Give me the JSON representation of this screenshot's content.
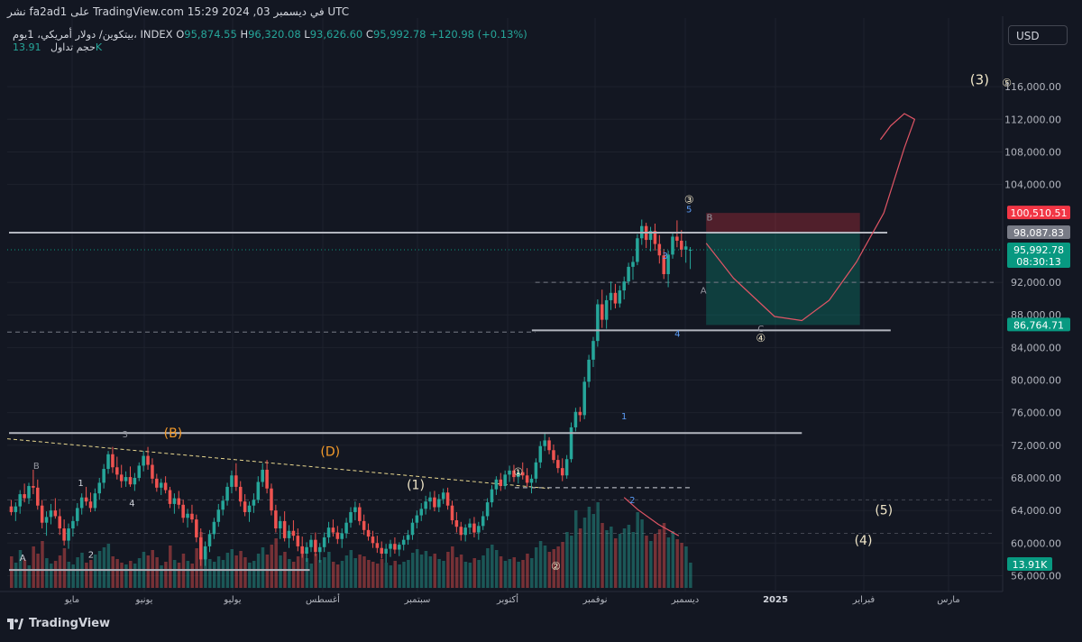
{
  "header": {
    "publish_line": "نشر fa2ad1 على TradingView.com في ديسمبر 03, 2024 15:29 UTC"
  },
  "symbol": {
    "name": "بيتكوين/ دولار أمريكي، 1يوم، INDEX",
    "open_label": "O",
    "open": "95,874.55",
    "high_label": "H",
    "high": "96,320.08",
    "low_label": "L",
    "low": "93,626.60",
    "close_label": "C",
    "close": "95,992.78",
    "change": "+120.98 (+0.13%)"
  },
  "volume": {
    "label": "حجم تداول",
    "value": "13.91K"
  },
  "currency_button": "USD",
  "brand": "TradingView",
  "chart_data": {
    "type": "candlestick",
    "title": "",
    "ylim": [
      54500,
      120000
    ],
    "y_ticks": [
      "56,000.00",
      "60,000.00",
      "64,000.00",
      "68,000.00",
      "72,000.00",
      "76,000.00",
      "80,000.00",
      "84,000.00",
      "88,000.00",
      "92,000.00",
      "104,000.00",
      "108,000.00",
      "112,000.00",
      "116,000.00"
    ],
    "x_ticks": [
      "مايو",
      "يونيو",
      "يوليو",
      "أغسطس",
      "سبتمبر",
      "أكتوبر",
      "نوفمبر",
      "ديسمبر",
      "2025",
      "فبراير",
      "مارس"
    ],
    "price_labels": [
      {
        "value": "100,510.51",
        "price": 100510.51,
        "color": "#f23645"
      },
      {
        "value": "98,087.83",
        "price": 98087.83,
        "color": "#787b86"
      },
      {
        "value": "95,992.78",
        "price": 95992.78,
        "color": "#089981",
        "sub": "08:30:13"
      },
      {
        "value": "86,764.71",
        "price": 86764.71,
        "color": "#089981"
      }
    ],
    "volume_badge": "13.91K",
    "wave_labels": [
      {
        "text": "(3)",
        "price": 116300,
        "xi": 1.42,
        "color": "#f0e6c8",
        "size": 15
      },
      {
        "text": "⑤",
        "price": 116000,
        "xi": 1.46,
        "color": "#f0e6c8",
        "size": 12
      },
      {
        "text": "③",
        "price": 101700,
        "xi": 0.995,
        "color": "#f0e6c8",
        "size": 12
      },
      {
        "text": "5",
        "price": 100600,
        "xi": 0.995,
        "color": "#5b9cf6",
        "size": 10
      },
      {
        "text": "B",
        "price": 99600,
        "xi": 1.025,
        "color": "#9598a1",
        "size": 10
      },
      {
        "text": "3",
        "price": 94900,
        "xi": 0.96,
        "color": "#5b9cf6",
        "size": 10
      },
      {
        "text": "A",
        "price": 90600,
        "xi": 1.016,
        "color": "#9598a1",
        "size": 10
      },
      {
        "text": "4",
        "price": 85300,
        "xi": 0.978,
        "color": "#5b9cf6",
        "size": 10
      },
      {
        "text": "C",
        "price": 85900,
        "xi": 1.1,
        "color": "#9598a1",
        "size": 10
      },
      {
        "text": "④",
        "price": 84700,
        "xi": 1.1,
        "color": "#f0e6c8",
        "size": 12
      },
      {
        "text": "1",
        "price": 75200,
        "xi": 0.9,
        "color": "#5b9cf6",
        "size": 10
      },
      {
        "text": "(B)",
        "price": 73000,
        "xi": 0.24,
        "color": "#f59b2a",
        "size": 14
      },
      {
        "text": "3",
        "price": 73000,
        "xi": 0.17,
        "color": "#9598a1",
        "size": 10
      },
      {
        "text": "(D)",
        "price": 70700,
        "xi": 0.47,
        "color": "#f59b2a",
        "size": 14
      },
      {
        "text": "B",
        "price": 69100,
        "xi": 0.04,
        "color": "#9598a1",
        "size": 10
      },
      {
        "text": "①",
        "price": 68300,
        "xi": 0.745,
        "color": "#f0e6c8",
        "size": 12
      },
      {
        "text": "1",
        "price": 67000,
        "xi": 0.105,
        "color": "#d1d4dc",
        "size": 10
      },
      {
        "text": "(1)",
        "price": 66600,
        "xi": 0.595,
        "color": "#f0e6c8",
        "size": 14
      },
      {
        "text": "2",
        "price": 64900,
        "xi": 0.912,
        "color": "#5b9cf6",
        "size": 10
      },
      {
        "text": "4",
        "price": 64500,
        "xi": 0.18,
        "color": "#d1d4dc",
        "size": 10
      },
      {
        "text": "(5)",
        "price": 63500,
        "xi": 1.28,
        "color": "#f0e6c8",
        "size": 14
      },
      {
        "text": "(4)",
        "price": 59800,
        "xi": 1.25,
        "color": "#f0e6c8",
        "size": 14
      },
      {
        "text": "2",
        "price": 58200,
        "xi": 0.12,
        "color": "#d1d4dc",
        "size": 10
      },
      {
        "text": "A",
        "price": 57800,
        "xi": 0.02,
        "color": "#d1d4dc",
        "size": 10
      },
      {
        "text": "②",
        "price": 56700,
        "xi": 0.8,
        "color": "#f0e6c8",
        "size": 12
      }
    ],
    "horizontal_levels": [
      {
        "price": 98087.83,
        "x0": 0.0,
        "x1": 1.285,
        "color": "#b2b5be"
      },
      {
        "price": 86100,
        "x0": 0.765,
        "x1": 1.29,
        "color": "#b2b5be"
      },
      {
        "price": 73500,
        "x0": 0.0,
        "x1": 1.16,
        "color": "#b2b5be"
      },
      {
        "price": 56700,
        "x0": 0.0,
        "x1": 0.44,
        "color": "#b2b5be"
      }
    ],
    "position": {
      "entry": 98087.83,
      "stop": 100510.51,
      "target": 86764.71,
      "x0": 1.02,
      "x1": 1.245
    },
    "candles": [
      [
        64500,
        65300,
        63400,
        63800
      ],
      [
        63800,
        65000,
        62700,
        64500
      ],
      [
        64500,
        66500,
        63600,
        66000
      ],
      [
        66000,
        67300,
        65000,
        65500
      ],
      [
        65500,
        67400,
        64800,
        67000
      ],
      [
        67000,
        69000,
        66000,
        66800
      ],
      [
        66800,
        67800,
        64100,
        64600
      ],
      [
        64600,
        65300,
        61800,
        62500
      ],
      [
        62500,
        63900,
        60900,
        63200
      ],
      [
        63200,
        64800,
        62300,
        64000
      ],
      [
        64000,
        65500,
        63000,
        63300
      ],
      [
        63300,
        64200,
        61000,
        61800
      ],
      [
        61800,
        62900,
        59700,
        60300
      ],
      [
        60300,
        62400,
        59300,
        61800
      ],
      [
        61800,
        63300,
        60800,
        62700
      ],
      [
        62700,
        64900,
        62100,
        64300
      ],
      [
        64300,
        66100,
        63500,
        65600
      ],
      [
        65600,
        66900,
        64600,
        65100
      ],
      [
        65100,
        66200,
        63800,
        64300
      ],
      [
        64300,
        66700,
        63900,
        66100
      ],
      [
        66100,
        68000,
        65300,
        67400
      ],
      [
        67400,
        69700,
        66700,
        69100
      ],
      [
        69100,
        71300,
        68500,
        70900
      ],
      [
        70900,
        71800,
        68600,
        69300
      ],
      [
        69300,
        70600,
        67800,
        68400
      ],
      [
        68400,
        69600,
        66800,
        67600
      ],
      [
        67600,
        68800,
        66900,
        68100
      ],
      [
        68100,
        69400,
        66900,
        67200
      ],
      [
        67200,
        68600,
        66400,
        68000
      ],
      [
        68000,
        69900,
        67600,
        69500
      ],
      [
        69500,
        71300,
        68800,
        70700
      ],
      [
        70700,
        71800,
        69000,
        69600
      ],
      [
        69600,
        70400,
        67300,
        67900
      ],
      [
        67900,
        68500,
        66300,
        66800
      ],
      [
        66800,
        67900,
        65900,
        67400
      ],
      [
        67400,
        68200,
        66100,
        66500
      ],
      [
        66500,
        66900,
        64300,
        64800
      ],
      [
        64800,
        66100,
        63600,
        65500
      ],
      [
        65500,
        66400,
        64200,
        64700
      ],
      [
        64700,
        65300,
        62500,
        63100
      ],
      [
        63100,
        64200,
        61900,
        63600
      ],
      [
        63600,
        64700,
        62500,
        62900
      ],
      [
        62900,
        63500,
        60100,
        60700
      ],
      [
        60700,
        61800,
        57200,
        58000
      ],
      [
        58000,
        60200,
        57200,
        59600
      ],
      [
        59600,
        61600,
        58900,
        61100
      ],
      [
        61100,
        63100,
        60500,
        62600
      ],
      [
        62600,
        64800,
        62000,
        64100
      ],
      [
        64100,
        65800,
        63400,
        65200
      ],
      [
        65200,
        67400,
        64600,
        66900
      ],
      [
        66900,
        68900,
        66100,
        68300
      ],
      [
        68300,
        69800,
        66400,
        66900
      ],
      [
        66900,
        67600,
        64500,
        65100
      ],
      [
        65100,
        66000,
        63300,
        63800
      ],
      [
        63800,
        65100,
        62600,
        64600
      ],
      [
        64600,
        66100,
        63700,
        65300
      ],
      [
        65300,
        68200,
        64900,
        67500
      ],
      [
        67500,
        69800,
        66900,
        69000
      ],
      [
        69000,
        70200,
        66100,
        66700
      ],
      [
        66700,
        67300,
        63400,
        64000
      ],
      [
        64000,
        64700,
        61300,
        61800
      ],
      [
        61800,
        63300,
        60500,
        62700
      ],
      [
        62700,
        63900,
        60200,
        60600
      ],
      [
        60600,
        62200,
        59400,
        61500
      ],
      [
        61500,
        62800,
        60300,
        60900
      ],
      [
        60900,
        61800,
        59000,
        59600
      ],
      [
        59600,
        60800,
        58200,
        58700
      ],
      [
        58700,
        60100,
        57700,
        59500
      ],
      [
        59500,
        61000,
        58900,
        60400
      ],
      [
        60400,
        61300,
        58400,
        58900
      ],
      [
        58900,
        60000,
        57600,
        59500
      ],
      [
        59500,
        61300,
        58900,
        60700
      ],
      [
        60700,
        62600,
        60000,
        61900
      ],
      [
        61900,
        62900,
        60800,
        61300
      ],
      [
        61300,
        62100,
        59900,
        60500
      ],
      [
        60500,
        61800,
        59400,
        61200
      ],
      [
        61200,
        63100,
        60600,
        62500
      ],
      [
        62500,
        64400,
        61900,
        63800
      ],
      [
        63800,
        65100,
        62800,
        64400
      ],
      [
        64400,
        64900,
        62200,
        62700
      ],
      [
        62700,
        63500,
        61000,
        61600
      ],
      [
        61600,
        62400,
        60300,
        60800
      ],
      [
        60800,
        61500,
        59400,
        60000
      ],
      [
        60000,
        60900,
        58800,
        59400
      ],
      [
        59400,
        60200,
        58100,
        58700
      ],
      [
        58700,
        59900,
        57600,
        59300
      ],
      [
        59300,
        60400,
        58300,
        59900
      ],
      [
        59900,
        60700,
        58700,
        59200
      ],
      [
        59200,
        60100,
        58400,
        59800
      ],
      [
        59800,
        60900,
        59100,
        60400
      ],
      [
        60400,
        61600,
        59800,
        61000
      ],
      [
        61000,
        63000,
        60400,
        62500
      ],
      [
        62500,
        64000,
        61800,
        63400
      ],
      [
        63400,
        64900,
        62700,
        64200
      ],
      [
        64200,
        65800,
        63500,
        65100
      ],
      [
        65100,
        66300,
        64100,
        65600
      ],
      [
        65600,
        66400,
        63900,
        64400
      ],
      [
        64400,
        66000,
        63800,
        65400
      ],
      [
        65400,
        66700,
        64800,
        66200
      ],
      [
        66200,
        66800,
        64100,
        64600
      ],
      [
        64600,
        65200,
        62300,
        62800
      ],
      [
        62800,
        63800,
        61300,
        62000
      ],
      [
        62000,
        62600,
        60300,
        61000
      ],
      [
        61000,
        62300,
        60200,
        61900
      ],
      [
        61900,
        63000,
        61100,
        62400
      ],
      [
        62400,
        63200,
        60700,
        61300
      ],
      [
        61300,
        62600,
        60400,
        62100
      ],
      [
        62100,
        63900,
        61600,
        63300
      ],
      [
        63300,
        65500,
        62800,
        65000
      ],
      [
        65000,
        67100,
        64400,
        66600
      ],
      [
        66600,
        68200,
        65900,
        67800
      ],
      [
        67800,
        68600,
        66400,
        67000
      ],
      [
        67000,
        68900,
        66600,
        68400
      ],
      [
        68400,
        69500,
        67500,
        68900
      ],
      [
        68900,
        69600,
        67500,
        68100
      ],
      [
        68100,
        69000,
        67300,
        68700
      ],
      [
        68700,
        69900,
        67800,
        68300
      ],
      [
        68300,
        69200,
        66900,
        67400
      ],
      [
        67400,
        68400,
        66100,
        67900
      ],
      [
        67900,
        70400,
        67400,
        69900
      ],
      [
        69900,
        72500,
        69200,
        71900
      ],
      [
        71900,
        73600,
        71300,
        72600
      ],
      [
        72600,
        73000,
        70900,
        71400
      ],
      [
        71400,
        72100,
        69800,
        70200
      ],
      [
        70200,
        70800,
        68600,
        69200
      ],
      [
        69200,
        70400,
        67600,
        68300
      ],
      [
        68300,
        70800,
        67900,
        70300
      ],
      [
        70300,
        74800,
        69900,
        74200
      ],
      [
        74200,
        76600,
        73700,
        76100
      ],
      [
        76100,
        76700,
        74900,
        75700
      ],
      [
        75700,
        80400,
        75200,
        79800
      ],
      [
        79800,
        83100,
        79100,
        82500
      ],
      [
        82500,
        85300,
        81600,
        84800
      ],
      [
        84800,
        89900,
        84100,
        89300
      ],
      [
        89300,
        91100,
        86400,
        87400
      ],
      [
        87400,
        90400,
        86300,
        89800
      ],
      [
        89800,
        92100,
        88600,
        90700
      ],
      [
        90700,
        91800,
        88800,
        89400
      ],
      [
        89400,
        91600,
        88900,
        91000
      ],
      [
        91000,
        92700,
        89900,
        92100
      ],
      [
        92100,
        94400,
        91700,
        93900
      ],
      [
        93900,
        95200,
        92300,
        94500
      ],
      [
        94500,
        97900,
        94100,
        97400
      ],
      [
        97400,
        99700,
        96600,
        98900
      ],
      [
        98900,
        99300,
        96200,
        97200
      ],
      [
        97200,
        98800,
        95800,
        98300
      ],
      [
        98300,
        99200,
        95900,
        96700
      ],
      [
        96700,
        97800,
        94300,
        95300
      ],
      [
        95300,
        96100,
        92400,
        93000
      ],
      [
        93000,
        95900,
        91400,
        95400
      ],
      [
        95400,
        98200,
        94900,
        97600
      ],
      [
        97600,
        99600,
        96300,
        97100
      ],
      [
        97100,
        98400,
        95100,
        96000
      ],
      [
        96000,
        97100,
        94400,
        96400
      ],
      [
        95874.55,
        96320.08,
        93626.6,
        95992.78
      ]
    ],
    "volumes": [
      0.35,
      0.28,
      0.42,
      0.31,
      0.25,
      0.46,
      0.38,
      0.52,
      0.33,
      0.27,
      0.3,
      0.36,
      0.44,
      0.29,
      0.26,
      0.34,
      0.39,
      0.28,
      0.31,
      0.37,
      0.41,
      0.45,
      0.49,
      0.35,
      0.32,
      0.28,
      0.26,
      0.3,
      0.27,
      0.33,
      0.4,
      0.36,
      0.42,
      0.34,
      0.25,
      0.29,
      0.47,
      0.31,
      0.28,
      0.38,
      0.3,
      0.27,
      0.44,
      0.62,
      0.4,
      0.32,
      0.29,
      0.35,
      0.31,
      0.39,
      0.43,
      0.36,
      0.41,
      0.34,
      0.28,
      0.3,
      0.38,
      0.45,
      0.37,
      0.48,
      0.55,
      0.36,
      0.4,
      0.32,
      0.29,
      0.35,
      0.41,
      0.33,
      0.27,
      0.38,
      0.31,
      0.34,
      0.4,
      0.29,
      0.26,
      0.3,
      0.36,
      0.42,
      0.33,
      0.37,
      0.35,
      0.31,
      0.29,
      0.27,
      0.32,
      0.28,
      0.25,
      0.3,
      0.26,
      0.29,
      0.31,
      0.39,
      0.43,
      0.37,
      0.41,
      0.35,
      0.38,
      0.32,
      0.3,
      0.4,
      0.46,
      0.34,
      0.37,
      0.29,
      0.28,
      0.33,
      0.31,
      0.36,
      0.44,
      0.48,
      0.42,
      0.35,
      0.3,
      0.32,
      0.34,
      0.29,
      0.31,
      0.38,
      0.33,
      0.45,
      0.52,
      0.47,
      0.4,
      0.43,
      0.46,
      0.51,
      0.62,
      0.58,
      0.86,
      0.66,
      0.78,
      0.9,
      0.82,
      0.95,
      0.72,
      0.64,
      0.68,
      0.55,
      0.6,
      0.66,
      0.7,
      0.62,
      0.84,
      0.76,
      0.58,
      0.52,
      0.6,
      0.65,
      0.72,
      0.56,
      0.63,
      0.54,
      0.5,
      0.46,
      0.28
    ]
  }
}
